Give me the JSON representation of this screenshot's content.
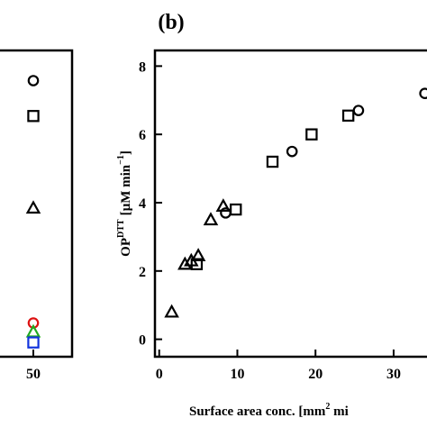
{
  "panel_a": {
    "x_tick_labels": [
      "50"
    ]
  },
  "panel_b": {
    "label": "(b)",
    "ylabel_main": "OP",
    "ylabel_sup": "DTT",
    "ylabel_unit": "[µM min",
    "ylabel_unit_sup": "−1",
    "ylabel_close": "]",
    "xlabel_main": "Surface area conc. [mm",
    "xlabel_sup": "2",
    "xlabel_tail": " mi"
  },
  "chart_data": [
    {
      "type": "scatter",
      "partial": true,
      "title": "",
      "xlabel": "",
      "ylabel": "",
      "x_ticks": [
        50
      ],
      "ylim": [
        0,
        8.3
      ],
      "grid": false,
      "series": [
        {
          "marker": "circle",
          "color": "#000000",
          "points": [
            [
              50,
              7.6
            ]
          ]
        },
        {
          "marker": "square",
          "color": "#000000",
          "points": [
            [
              50,
              6.6
            ]
          ]
        },
        {
          "marker": "triangle",
          "color": "#000000",
          "points": [
            [
              50,
              4.0
            ]
          ]
        },
        {
          "marker": "circle",
          "color": "#dd1111",
          "points": [
            [
              50,
              0.75
            ]
          ]
        },
        {
          "marker": "triangle",
          "color": "#22aa22",
          "points": [
            [
              50,
              0.5
            ]
          ]
        },
        {
          "marker": "square",
          "color": "#1133dd",
          "points": [
            [
              50,
              0.2
            ]
          ]
        }
      ]
    },
    {
      "type": "scatter",
      "label": "(b)",
      "title": "",
      "xlabel": "Surface area conc. [mm² mi",
      "ylabel": "OP^DTT [µM min⁻¹]",
      "x_ticks": [
        0,
        10,
        20,
        30
      ],
      "y_ticks": [
        0,
        2,
        4,
        6,
        8
      ],
      "xlim": [
        -0.2,
        36
      ],
      "ylim": [
        -0.3,
        8.3
      ],
      "grid": false,
      "series": [
        {
          "marker": "circle",
          "color": "#000000",
          "points": [
            [
              8.5,
              3.7
            ],
            [
              17,
              5.5
            ],
            [
              25.5,
              6.7
            ],
            [
              34,
              7.2
            ]
          ]
        },
        {
          "marker": "square",
          "color": "#000000",
          "points": [
            [
              4.8,
              2.2
            ],
            [
              9.8,
              3.8
            ],
            [
              14.5,
              5.2
            ],
            [
              19.5,
              6.0
            ],
            [
              24.2,
              6.55
            ]
          ]
        },
        {
          "marker": "triangle",
          "color": "#000000",
          "points": [
            [
              1.6,
              0.8
            ],
            [
              3.3,
              2.2
            ],
            [
              4.1,
              2.3
            ],
            [
              5.0,
              2.45
            ],
            [
              6.6,
              3.5
            ],
            [
              8.2,
              3.9
            ]
          ]
        }
      ]
    }
  ]
}
